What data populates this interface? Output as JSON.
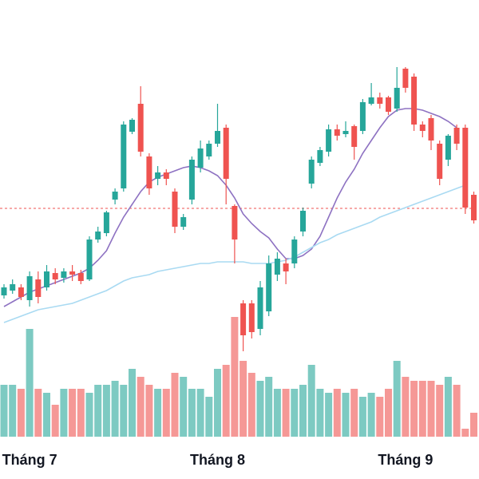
{
  "chart_data": {
    "type": "candlestick",
    "categories": [
      null,
      null,
      null,
      "Tháng 7",
      null,
      null,
      null,
      null,
      null,
      null,
      null,
      null,
      null,
      null,
      null,
      null,
      null,
      null,
      null,
      null,
      null,
      null,
      null,
      null,
      null,
      "Tháng 8",
      null,
      null,
      null,
      null,
      null,
      null,
      null,
      null,
      null,
      null,
      null,
      null,
      null,
      null,
      null,
      null,
      null,
      null,
      null,
      null,
      null,
      "Tháng 9",
      null,
      null,
      null,
      null,
      null,
      null,
      null,
      null
    ],
    "open": [
      17.5,
      19,
      20,
      16,
      22.5,
      20,
      24.5,
      23,
      25,
      24.5,
      22.5,
      35,
      37,
      47.5,
      51,
      68.75,
      77.5,
      61,
      54,
      56,
      50,
      39,
      47.5,
      57.5,
      61,
      65,
      70,
      45.5,
      15,
      15,
      7,
      12.5,
      24,
      27.5,
      27.5,
      37.5,
      52.5,
      59,
      62.5,
      69.5,
      68,
      70.5,
      69,
      77.5,
      79.5,
      79.5,
      76,
      88.5,
      86,
      71,
      73,
      65,
      60,
      70,
      70,
      49
    ],
    "high": [
      21,
      22.5,
      21,
      25,
      25,
      27,
      26,
      26,
      27,
      25.5,
      36,
      39,
      44,
      51,
      72,
      73,
      83,
      62,
      58,
      57,
      51,
      43,
      61,
      66,
      66,
      77.5,
      71,
      46,
      16,
      16,
      22,
      30,
      31,
      29,
      36,
      45,
      61,
      64,
      71,
      71,
      72,
      71,
      79,
      84,
      81,
      80,
      89,
      89,
      87,
      72,
      74,
      66,
      68,
      71,
      71,
      50
    ],
    "low": [
      16.5,
      18,
      16,
      14,
      15,
      19,
      21,
      21.5,
      22,
      21,
      22,
      34,
      36,
      46,
      50,
      68,
      61,
      49,
      52,
      52,
      37,
      38,
      46,
      56,
      60,
      64,
      46,
      27.5,
      0,
      4,
      5,
      11,
      22,
      21,
      26,
      36,
      51,
      58,
      61,
      66,
      67,
      60,
      68,
      77,
      76,
      74,
      75,
      81,
      69,
      67,
      63,
      52,
      58,
      63,
      43,
      40
    ],
    "close": [
      20,
      21,
      17,
      23.5,
      17,
      25,
      22.5,
      25,
      24,
      22,
      35,
      37.5,
      43.5,
      50,
      71,
      72.5,
      62.5,
      51,
      56,
      54,
      39,
      42,
      60,
      63.5,
      65,
      69,
      54,
      35,
      5,
      6,
      20,
      27.5,
      29,
      25,
      35,
      44,
      60,
      63,
      69.5,
      67.5,
      69,
      64,
      78,
      79.5,
      77.5,
      75,
      82.5,
      82.5,
      71,
      69,
      66,
      54,
      67.5,
      65,
      45,
      41
    ],
    "volume": [
      65,
      65,
      60,
      135,
      60,
      55,
      40,
      60,
      60,
      60,
      55,
      65,
      65,
      70,
      65,
      85,
      75,
      65,
      60,
      60,
      80,
      75,
      60,
      60,
      50,
      85,
      90,
      150,
      95,
      80,
      70,
      75,
      60,
      60,
      60,
      65,
      90,
      60,
      55,
      60,
      55,
      60,
      50,
      55,
      50,
      60,
      95,
      75,
      70,
      70,
      70,
      65,
      75,
      65,
      10,
      30
    ],
    "up_color": "#26a69a",
    "down_color": "#ef5350",
    "overlays": [
      {
        "color": "#8e72c2",
        "values": [
          14,
          15.5,
          17,
          18.5,
          19.5,
          20.5,
          21.5,
          22.5,
          23.5,
          24.5,
          26,
          28.5,
          31.5,
          37,
          42,
          46,
          50,
          53,
          54.5,
          55.5,
          56.5,
          57.5,
          58,
          57.5,
          56.5,
          55,
          52,
          48,
          43,
          40,
          37.5,
          35.5,
          32,
          29,
          29,
          30,
          32,
          36,
          42,
          48,
          53,
          57,
          62,
          66,
          70,
          73.5,
          75.5,
          76,
          76,
          75.5,
          74.5,
          73.5,
          72,
          70,
          null,
          null
        ]
      },
      {
        "color": "#a9daf2",
        "values": [
          9,
          10,
          11,
          12,
          13,
          13.5,
          14,
          14.5,
          15,
          16,
          17,
          18,
          19,
          20.5,
          22,
          23,
          23.5,
          24,
          25,
          25.5,
          26,
          26.5,
          27,
          27.5,
          27.5,
          28,
          28,
          28,
          28,
          27.5,
          27.5,
          27.5,
          28,
          28.5,
          29.5,
          31,
          32.5,
          34,
          35,
          36.5,
          37.5,
          38.5,
          39.5,
          40.5,
          42,
          43,
          44,
          45,
          46,
          47,
          48,
          49,
          50,
          51,
          52,
          null
        ]
      }
    ],
    "reference_line": {
      "value": 44.75,
      "color": "#ef5350"
    },
    "ylim": [
      0,
      100
    ]
  }
}
